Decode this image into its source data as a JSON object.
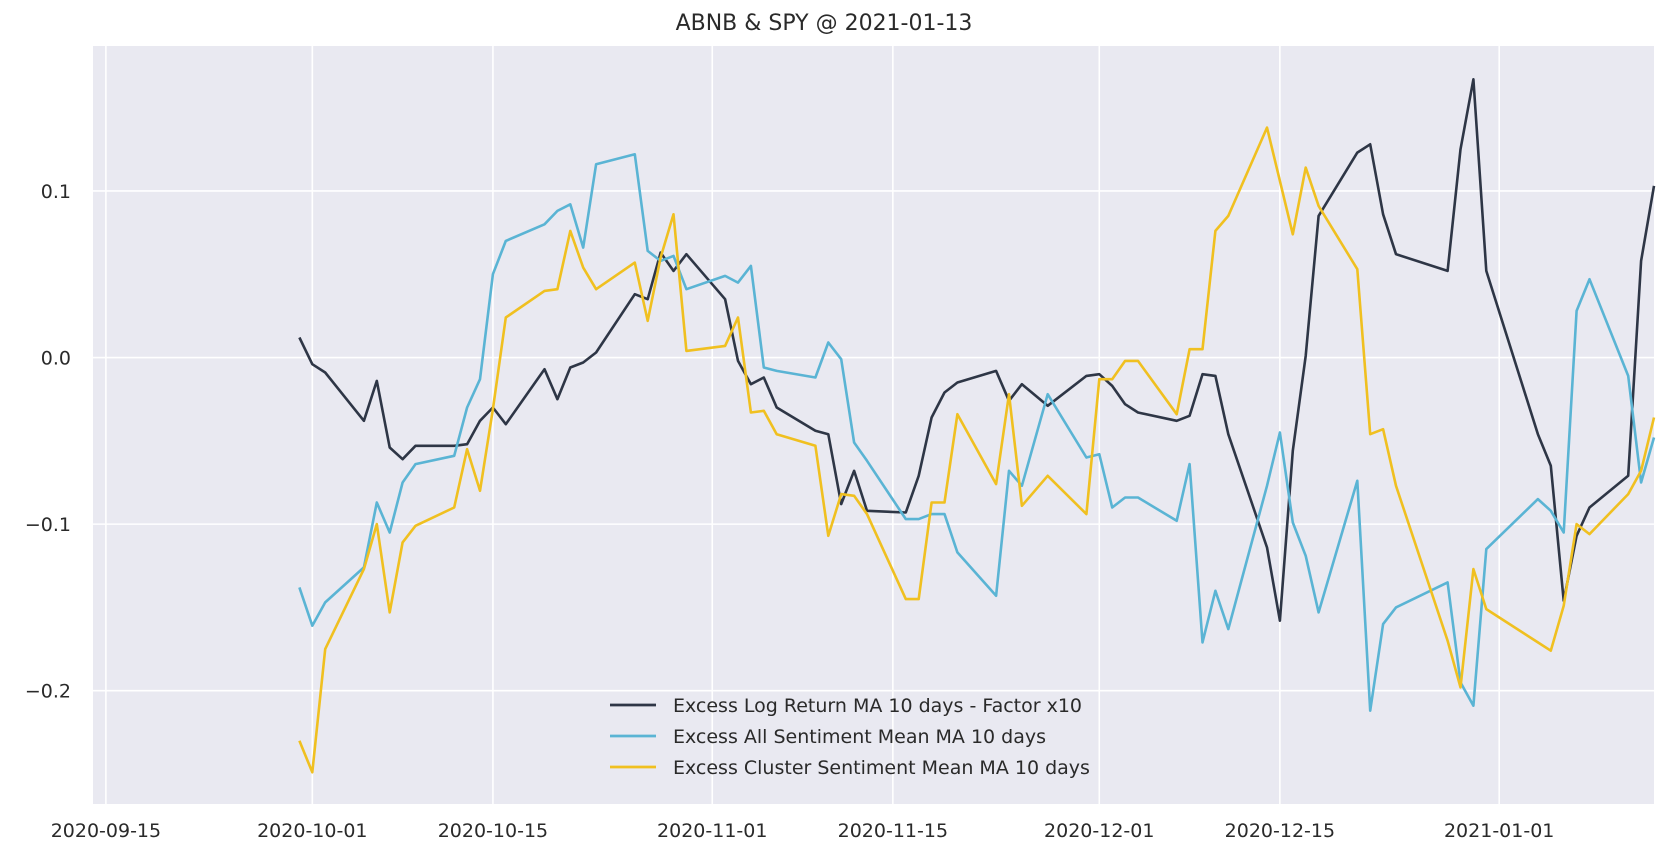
{
  "chart_data": {
    "type": "line",
    "title": "ABNB & SPY @ 2021-01-13",
    "xlabel": "",
    "ylabel": "",
    "x_range": [
      "2020-09-14",
      "2021-01-13"
    ],
    "ylim": [
      -0.268,
      0.187
    ],
    "grid": true,
    "legend_position": "lower center",
    "background": "#e9e9f1",
    "grid_color": "#ffffff",
    "x_ticks": [
      "2020-09-15",
      "2020-10-01",
      "2020-10-15",
      "2020-11-01",
      "2020-11-15",
      "2020-12-01",
      "2020-12-15",
      "2021-01-01"
    ],
    "y_ticks": [
      {
        "value": 0.1,
        "label": "0.1"
      },
      {
        "value": 0.0,
        "label": "0.0"
      },
      {
        "value": -0.1,
        "label": "−0.1"
      },
      {
        "value": -0.2,
        "label": "−0.2"
      }
    ],
    "series": [
      {
        "name": "Excess Log Return MA 10 days - Factor x10",
        "color": "#2e3646",
        "points": [
          [
            "2020-09-30",
            0.012
          ],
          [
            "2020-10-01",
            -0.004
          ],
          [
            "2020-10-02",
            -0.009
          ],
          [
            "2020-10-05",
            -0.038
          ],
          [
            "2020-10-06",
            -0.014
          ],
          [
            "2020-10-07",
            -0.054
          ],
          [
            "2020-10-08",
            -0.061
          ],
          [
            "2020-10-09",
            -0.053
          ],
          [
            "2020-10-12",
            -0.053
          ],
          [
            "2020-10-13",
            -0.052
          ],
          [
            "2020-10-14",
            -0.038
          ],
          [
            "2020-10-15",
            -0.03
          ],
          [
            "2020-10-16",
            -0.04
          ],
          [
            "2020-10-19",
            -0.007
          ],
          [
            "2020-10-20",
            -0.025
          ],
          [
            "2020-10-21",
            -0.006
          ],
          [
            "2020-10-22",
            -0.003
          ],
          [
            "2020-10-23",
            0.003
          ],
          [
            "2020-10-26",
            0.038
          ],
          [
            "2020-10-27",
            0.035
          ],
          [
            "2020-10-28",
            0.063
          ],
          [
            "2020-10-29",
            0.052
          ],
          [
            "2020-10-30",
            0.062
          ],
          [
            "2020-11-02",
            0.035
          ],
          [
            "2020-11-03",
            -0.002
          ],
          [
            "2020-11-04",
            -0.016
          ],
          [
            "2020-11-05",
            -0.012
          ],
          [
            "2020-11-06",
            -0.03
          ],
          [
            "2020-11-09",
            -0.044
          ],
          [
            "2020-11-10",
            -0.046
          ],
          [
            "2020-11-11",
            -0.088
          ],
          [
            "2020-11-12",
            -0.068
          ],
          [
            "2020-11-13",
            -0.092
          ],
          [
            "2020-11-16",
            -0.093
          ],
          [
            "2020-11-17",
            -0.071
          ],
          [
            "2020-11-18",
            -0.036
          ],
          [
            "2020-11-19",
            -0.021
          ],
          [
            "2020-11-20",
            -0.015
          ],
          [
            "2020-11-23",
            -0.008
          ],
          [
            "2020-11-24",
            -0.026
          ],
          [
            "2020-11-25",
            -0.016
          ],
          [
            "2020-11-27",
            -0.029
          ],
          [
            "2020-11-30",
            -0.011
          ],
          [
            "2020-12-01",
            -0.01
          ],
          [
            "2020-12-02",
            -0.017
          ],
          [
            "2020-12-03",
            -0.028
          ],
          [
            "2020-12-04",
            -0.033
          ],
          [
            "2020-12-07",
            -0.038
          ],
          [
            "2020-12-08",
            -0.035
          ],
          [
            "2020-12-09",
            -0.01
          ],
          [
            "2020-12-10",
            -0.011
          ],
          [
            "2020-12-11",
            -0.046
          ],
          [
            "2020-12-14",
            -0.114
          ],
          [
            "2020-12-15",
            -0.158
          ],
          [
            "2020-12-16",
            -0.056
          ],
          [
            "2020-12-17",
            0.001
          ],
          [
            "2020-12-18",
            0.085
          ],
          [
            "2020-12-21",
            0.123
          ],
          [
            "2020-12-22",
            0.128
          ],
          [
            "2020-12-23",
            0.086
          ],
          [
            "2020-12-24",
            0.062
          ],
          [
            "2020-12-28",
            0.052
          ],
          [
            "2020-12-29",
            0.125
          ],
          [
            "2020-12-30",
            0.167
          ],
          [
            "2020-12-31",
            0.052
          ],
          [
            "2021-01-04",
            -0.046
          ],
          [
            "2021-01-05",
            -0.065
          ],
          [
            "2021-01-06",
            -0.146
          ],
          [
            "2021-01-07",
            -0.107
          ],
          [
            "2021-01-08",
            -0.09
          ],
          [
            "2021-01-11",
            -0.071
          ],
          [
            "2021-01-12",
            0.058
          ],
          [
            "2021-01-13",
            0.103
          ]
        ]
      },
      {
        "name": "Excess All Sentiment Mean MA 10 days",
        "color": "#5ab4d4",
        "points": [
          [
            "2020-09-30",
            -0.138
          ],
          [
            "2020-10-01",
            -0.161
          ],
          [
            "2020-10-02",
            -0.147
          ],
          [
            "2020-10-05",
            -0.126
          ],
          [
            "2020-10-06",
            -0.087
          ],
          [
            "2020-10-07",
            -0.105
          ],
          [
            "2020-10-08",
            -0.075
          ],
          [
            "2020-10-09",
            -0.064
          ],
          [
            "2020-10-12",
            -0.059
          ],
          [
            "2020-10-13",
            -0.03
          ],
          [
            "2020-10-14",
            -0.013
          ],
          [
            "2020-10-15",
            0.05
          ],
          [
            "2020-10-16",
            0.07
          ],
          [
            "2020-10-19",
            0.08
          ],
          [
            "2020-10-20",
            0.088
          ],
          [
            "2020-10-21",
            0.092
          ],
          [
            "2020-10-22",
            0.066
          ],
          [
            "2020-10-23",
            0.116
          ],
          [
            "2020-10-26",
            0.122
          ],
          [
            "2020-10-27",
            0.064
          ],
          [
            "2020-10-28",
            0.058
          ],
          [
            "2020-10-29",
            0.061
          ],
          [
            "2020-10-30",
            0.041
          ],
          [
            "2020-11-02",
            0.049
          ],
          [
            "2020-11-03",
            0.045
          ],
          [
            "2020-11-04",
            0.055
          ],
          [
            "2020-11-05",
            -0.006
          ],
          [
            "2020-11-06",
            -0.008
          ],
          [
            "2020-11-09",
            -0.012
          ],
          [
            "2020-11-10",
            0.009
          ],
          [
            "2020-11-11",
            -0.001
          ],
          [
            "2020-11-12",
            -0.051
          ],
          [
            "2020-11-13",
            -0.062
          ],
          [
            "2020-11-16",
            -0.097
          ],
          [
            "2020-11-17",
            -0.097
          ],
          [
            "2020-11-18",
            -0.094
          ],
          [
            "2020-11-19",
            -0.094
          ],
          [
            "2020-11-20",
            -0.117
          ],
          [
            "2020-11-23",
            -0.143
          ],
          [
            "2020-11-24",
            -0.068
          ],
          [
            "2020-11-25",
            -0.077
          ],
          [
            "2020-11-27",
            -0.022
          ],
          [
            "2020-11-30",
            -0.06
          ],
          [
            "2020-12-01",
            -0.058
          ],
          [
            "2020-12-02",
            -0.09
          ],
          [
            "2020-12-03",
            -0.084
          ],
          [
            "2020-12-04",
            -0.084
          ],
          [
            "2020-12-07",
            -0.098
          ],
          [
            "2020-12-08",
            -0.064
          ],
          [
            "2020-12-09",
            -0.171
          ],
          [
            "2020-12-10",
            -0.14
          ],
          [
            "2020-12-11",
            -0.163
          ],
          [
            "2020-12-14",
            -0.077
          ],
          [
            "2020-12-15",
            -0.045
          ],
          [
            "2020-12-16",
            -0.099
          ],
          [
            "2020-12-17",
            -0.119
          ],
          [
            "2020-12-18",
            -0.153
          ],
          [
            "2020-12-21",
            -0.074
          ],
          [
            "2020-12-22",
            -0.212
          ],
          [
            "2020-12-23",
            -0.16
          ],
          [
            "2020-12-24",
            -0.15
          ],
          [
            "2020-12-28",
            -0.135
          ],
          [
            "2020-12-29",
            -0.195
          ],
          [
            "2020-12-30",
            -0.209
          ],
          [
            "2020-12-31",
            -0.115
          ],
          [
            "2021-01-04",
            -0.085
          ],
          [
            "2021-01-05",
            -0.092
          ],
          [
            "2021-01-06",
            -0.105
          ],
          [
            "2021-01-07",
            0.028
          ],
          [
            "2021-01-08",
            0.047
          ],
          [
            "2021-01-11",
            -0.011
          ],
          [
            "2021-01-12",
            -0.075
          ],
          [
            "2021-01-13",
            -0.048
          ]
        ]
      },
      {
        "name": "Excess Cluster Sentiment Mean MA 10 days",
        "color": "#f0c020",
        "points": [
          [
            "2020-09-30",
            -0.23
          ],
          [
            "2020-10-01",
            -0.249
          ],
          [
            "2020-10-02",
            -0.175
          ],
          [
            "2020-10-05",
            -0.127
          ],
          [
            "2020-10-06",
            -0.1
          ],
          [
            "2020-10-07",
            -0.153
          ],
          [
            "2020-10-08",
            -0.111
          ],
          [
            "2020-10-09",
            -0.101
          ],
          [
            "2020-10-12",
            -0.09
          ],
          [
            "2020-10-13",
            -0.055
          ],
          [
            "2020-10-14",
            -0.08
          ],
          [
            "2020-10-15",
            -0.031
          ],
          [
            "2020-10-16",
            0.024
          ],
          [
            "2020-10-19",
            0.04
          ],
          [
            "2020-10-20",
            0.041
          ],
          [
            "2020-10-21",
            0.076
          ],
          [
            "2020-10-22",
            0.054
          ],
          [
            "2020-10-23",
            0.041
          ],
          [
            "2020-10-26",
            0.057
          ],
          [
            "2020-10-27",
            0.022
          ],
          [
            "2020-10-28",
            0.06
          ],
          [
            "2020-10-29",
            0.086
          ],
          [
            "2020-10-30",
            0.004
          ],
          [
            "2020-11-02",
            0.007
          ],
          [
            "2020-11-03",
            0.024
          ],
          [
            "2020-11-04",
            -0.033
          ],
          [
            "2020-11-05",
            -0.032
          ],
          [
            "2020-11-06",
            -0.046
          ],
          [
            "2020-11-09",
            -0.053
          ],
          [
            "2020-11-10",
            -0.107
          ],
          [
            "2020-11-11",
            -0.082
          ],
          [
            "2020-11-12",
            -0.083
          ],
          [
            "2020-11-13",
            -0.094
          ],
          [
            "2020-11-16",
            -0.145
          ],
          [
            "2020-11-17",
            -0.145
          ],
          [
            "2020-11-18",
            -0.087
          ],
          [
            "2020-11-19",
            -0.087
          ],
          [
            "2020-11-20",
            -0.034
          ],
          [
            "2020-11-23",
            -0.076
          ],
          [
            "2020-11-24",
            -0.022
          ],
          [
            "2020-11-25",
            -0.089
          ],
          [
            "2020-11-27",
            -0.071
          ],
          [
            "2020-11-30",
            -0.094
          ],
          [
            "2020-12-01",
            -0.013
          ],
          [
            "2020-12-02",
            -0.013
          ],
          [
            "2020-12-03",
            -0.002
          ],
          [
            "2020-12-04",
            -0.002
          ],
          [
            "2020-12-07",
            -0.034
          ],
          [
            "2020-12-08",
            0.005
          ],
          [
            "2020-12-09",
            0.005
          ],
          [
            "2020-12-10",
            0.076
          ],
          [
            "2020-12-11",
            0.085
          ],
          [
            "2020-12-14",
            0.138
          ],
          [
            "2020-12-15",
            0.106
          ],
          [
            "2020-12-16",
            0.074
          ],
          [
            "2020-12-17",
            0.114
          ],
          [
            "2020-12-18",
            0.091
          ],
          [
            "2020-12-21",
            0.053
          ],
          [
            "2020-12-22",
            -0.046
          ],
          [
            "2020-12-23",
            -0.043
          ],
          [
            "2020-12-24",
            -0.077
          ],
          [
            "2020-12-28",
            -0.17
          ],
          [
            "2020-12-29",
            -0.198
          ],
          [
            "2020-12-30",
            -0.127
          ],
          [
            "2020-12-31",
            -0.151
          ],
          [
            "2021-01-04",
            -0.171
          ],
          [
            "2021-01-05",
            -0.176
          ],
          [
            "2021-01-06",
            -0.149
          ],
          [
            "2021-01-07",
            -0.1
          ],
          [
            "2021-01-08",
            -0.106
          ],
          [
            "2021-01-11",
            -0.082
          ],
          [
            "2021-01-12",
            -0.068
          ],
          [
            "2021-01-13",
            -0.036
          ]
        ]
      }
    ]
  }
}
